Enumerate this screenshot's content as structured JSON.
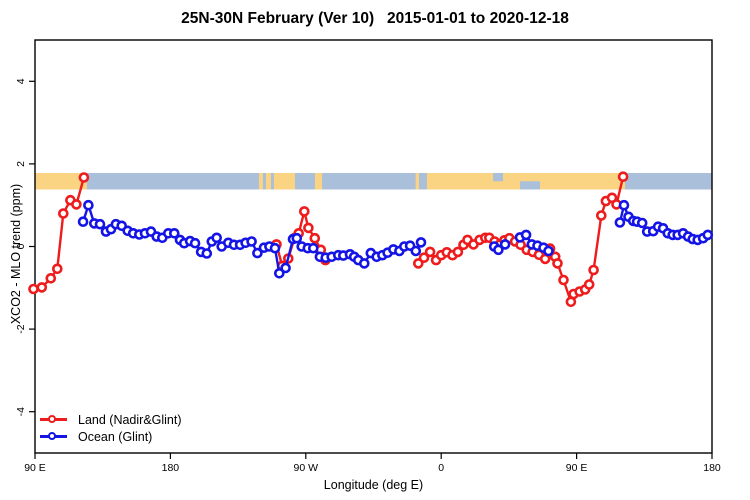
{
  "title": "25N-30N February (Ver 10)   2015-01-01 to 2020-12-18",
  "legend": {
    "items": [
      {
        "label": "Land (Nadir&Glint)"
      },
      {
        "label": "Ocean (Glint)"
      }
    ]
  },
  "chart_data": {
    "type": "line",
    "title": "25N-30N February (Ver 10)   2015-01-01 to 2020-12-18",
    "xlabel": "Longitude (deg E)",
    "ylabel": "XCO2 - MLO trend (ppm)",
    "grid": false,
    "legend_position": "bottom-left-inside",
    "x_axis": {
      "range_deg": [
        90,
        540
      ],
      "tick_positions_deg": [
        90,
        180,
        270,
        360,
        450,
        540
      ],
      "tick_labels": [
        "90 E",
        "180",
        "90 W",
        "0",
        "90 E",
        "180"
      ]
    },
    "y_axis": {
      "range": [
        -5,
        5
      ],
      "tick_values": [
        -4,
        -2,
        0,
        2,
        4
      ],
      "tick_labels": [
        "-4",
        "-2",
        "0",
        "2",
        "4"
      ]
    },
    "map_band": {
      "comment": "land/ocean strip drawn across plot near y=1.6",
      "y_top_value": 1.78,
      "y_bottom_value": 1.38,
      "ocean_color": "#aabfda",
      "land_color": "#fbd483",
      "land_segments_deg": [
        [
          90,
          124.5
        ],
        [
          238.9,
          241.5
        ],
        [
          243.5,
          246.8
        ],
        [
          248.8,
          262.8
        ],
        [
          276.1,
          280.8
        ],
        [
          343.0,
          345.2
        ],
        [
          350.5,
          482.2
        ]
      ],
      "ocean_notches_deg": [
        {
          "from": 394.5,
          "to": 401.1,
          "part": "top"
        },
        {
          "from": 412.4,
          "to": 425.7,
          "part": "bottom"
        }
      ]
    },
    "series": [
      {
        "name": "Land (Nadir&Glint)",
        "color": "#ee1c1c",
        "marker": "open-circle",
        "segments": [
          [
            [
              89,
              -1.03
            ],
            [
              94.5,
              -0.99
            ],
            [
              100.5,
              -0.77
            ],
            [
              104.8,
              -0.54
            ],
            [
              108.8,
              0.8
            ],
            [
              113.5,
              1.12
            ],
            [
              117.5,
              1.02
            ],
            [
              122.5,
              1.67
            ]
          ],
          [
            [
              250.5,
              0.05
            ],
            [
              254.3,
              -0.47
            ],
            [
              258.4,
              -0.29
            ],
            [
              262.4,
              0.2
            ],
            [
              265.3,
              0.32
            ],
            [
              269,
              0.85
            ],
            [
              271.7,
              0.45
            ],
            [
              276,
              0.2
            ],
            [
              280,
              -0.08
            ],
            [
              283,
              -0.33
            ]
          ],
          [
            [
              344.8,
              -0.41
            ],
            [
              348.6,
              -0.27
            ],
            [
              352.6,
              -0.13
            ],
            [
              356.6,
              -0.33
            ],
            [
              360,
              -0.21
            ],
            [
              363.7,
              -0.14
            ],
            [
              367.5,
              -0.21
            ],
            [
              371.1,
              -0.13
            ],
            [
              374.8,
              0.04
            ],
            [
              377.5,
              0.16
            ],
            [
              381.5,
              0.05
            ],
            [
              385.5,
              0.16
            ],
            [
              389.3,
              0.21
            ],
            [
              392,
              0.21
            ],
            [
              395.5,
              0.12
            ],
            [
              399,
              0.05
            ],
            [
              402,
              0.15
            ],
            [
              405.3,
              0.2
            ],
            [
              409.1,
              0.12
            ],
            [
              412.8,
              0.04
            ],
            [
              416.8,
              -0.08
            ],
            [
              420.8,
              -0.13
            ],
            [
              425,
              -0.2
            ],
            [
              429.1,
              -0.3
            ],
            [
              432.4,
              -0.05
            ],
            [
              435.8,
              -0.25
            ],
            [
              437.3,
              -0.41
            ],
            [
              441.3,
              -0.81
            ],
            [
              446.2,
              -1.34
            ],
            [
              448,
              -1.15
            ],
            [
              452,
              -1.09
            ],
            [
              455.7,
              -1.04
            ],
            [
              458.4,
              -0.92
            ],
            [
              461.3,
              -0.57
            ],
            [
              466.4,
              0.75
            ],
            [
              469.5,
              1.1
            ],
            [
              473.5,
              1.18
            ],
            [
              476.5,
              1.02
            ],
            [
              480.9,
              1.69
            ]
          ]
        ]
      },
      {
        "name": "Ocean (Glint)",
        "color": "#1414e6",
        "marker": "open-circle",
        "segments": [
          [
            [
              122,
              0.6
            ],
            [
              125.5,
              1.0
            ],
            [
              129.4,
              0.56
            ],
            [
              133.2,
              0.54
            ],
            [
              137.2,
              0.36
            ],
            [
              140.5,
              0.42
            ],
            [
              143.8,
              0.54
            ],
            [
              147.6,
              0.5
            ],
            [
              151.6,
              0.38
            ],
            [
              155.3,
              0.32
            ],
            [
              159.3,
              0.29
            ],
            [
              163.1,
              0.32
            ],
            [
              167.1,
              0.36
            ],
            [
              170.9,
              0.24
            ],
            [
              174.6,
              0.21
            ],
            [
              178.6,
              0.32
            ],
            [
              182.6,
              0.32
            ],
            [
              186.4,
              0.16
            ],
            [
              189.2,
              0.08
            ],
            [
              193.1,
              0.13
            ],
            [
              196.4,
              0.08
            ],
            [
              200.4,
              -0.13
            ],
            [
              204.2,
              -0.17
            ],
            [
              207.5,
              0.12
            ],
            [
              210.8,
              0.21
            ],
            [
              214.1,
              0.0
            ],
            [
              218.5,
              0.09
            ],
            [
              222.3,
              0.04
            ],
            [
              226.3,
              0.04
            ],
            [
              230,
              0.09
            ],
            [
              234,
              0.12
            ],
            [
              237.8,
              -0.16
            ],
            [
              242.2,
              -0.03
            ],
            [
              245.8,
              0.0
            ],
            [
              249.5,
              -0.04
            ],
            [
              252.4,
              -0.65
            ],
            [
              256.6,
              -0.52
            ],
            [
              261.5,
              0.18
            ],
            [
              264,
              0.2
            ],
            [
              267.3,
              0.0
            ],
            [
              271.3,
              -0.04
            ],
            [
              275,
              -0.04
            ],
            [
              279.4,
              -0.25
            ],
            [
              283.2,
              -0.27
            ],
            [
              287.2,
              -0.25
            ],
            [
              291.6,
              -0.21
            ],
            [
              294.9,
              -0.22
            ],
            [
              299.4,
              -0.19
            ],
            [
              302.2,
              -0.25
            ],
            [
              304.9,
              -0.33
            ],
            [
              308.9,
              -0.41
            ],
            [
              313.2,
              -0.16
            ],
            [
              317.1,
              -0.25
            ],
            [
              320.9,
              -0.21
            ],
            [
              324.4,
              -0.15
            ],
            [
              328.2,
              -0.07
            ],
            [
              332.2,
              -0.11
            ],
            [
              335.5,
              0.0
            ],
            [
              339.3,
              0.02
            ],
            [
              343.1,
              -0.11
            ],
            [
              346.6,
              0.1
            ]
          ],
          [
            [
              395.2,
              0.0
            ],
            [
              398,
              -0.08
            ],
            [
              402.5,
              0.05
            ]
          ],
          [
            [
              412.4,
              0.22
            ],
            [
              416.4,
              0.28
            ],
            [
              420.2,
              0.05
            ],
            [
              424,
              0.02
            ],
            [
              428,
              -0.03
            ],
            [
              431.3,
              -0.11
            ]
          ],
          [
            [
              478.8,
              0.58
            ],
            [
              481.5,
              1.0
            ],
            [
              484.5,
              0.72
            ],
            [
              487.6,
              0.62
            ],
            [
              490.2,
              0.6
            ],
            [
              493.6,
              0.57
            ],
            [
              496.9,
              0.36
            ],
            [
              500.9,
              0.37
            ],
            [
              504.2,
              0.48
            ],
            [
              507.5,
              0.44
            ],
            [
              510.6,
              0.32
            ],
            [
              513.9,
              0.28
            ],
            [
              517.2,
              0.28
            ],
            [
              520.8,
              0.32
            ],
            [
              524.1,
              0.24
            ],
            [
              527.2,
              0.18
            ],
            [
              530.5,
              0.16
            ],
            [
              534.1,
              0.2
            ],
            [
              537.2,
              0.28
            ]
          ]
        ]
      }
    ]
  }
}
